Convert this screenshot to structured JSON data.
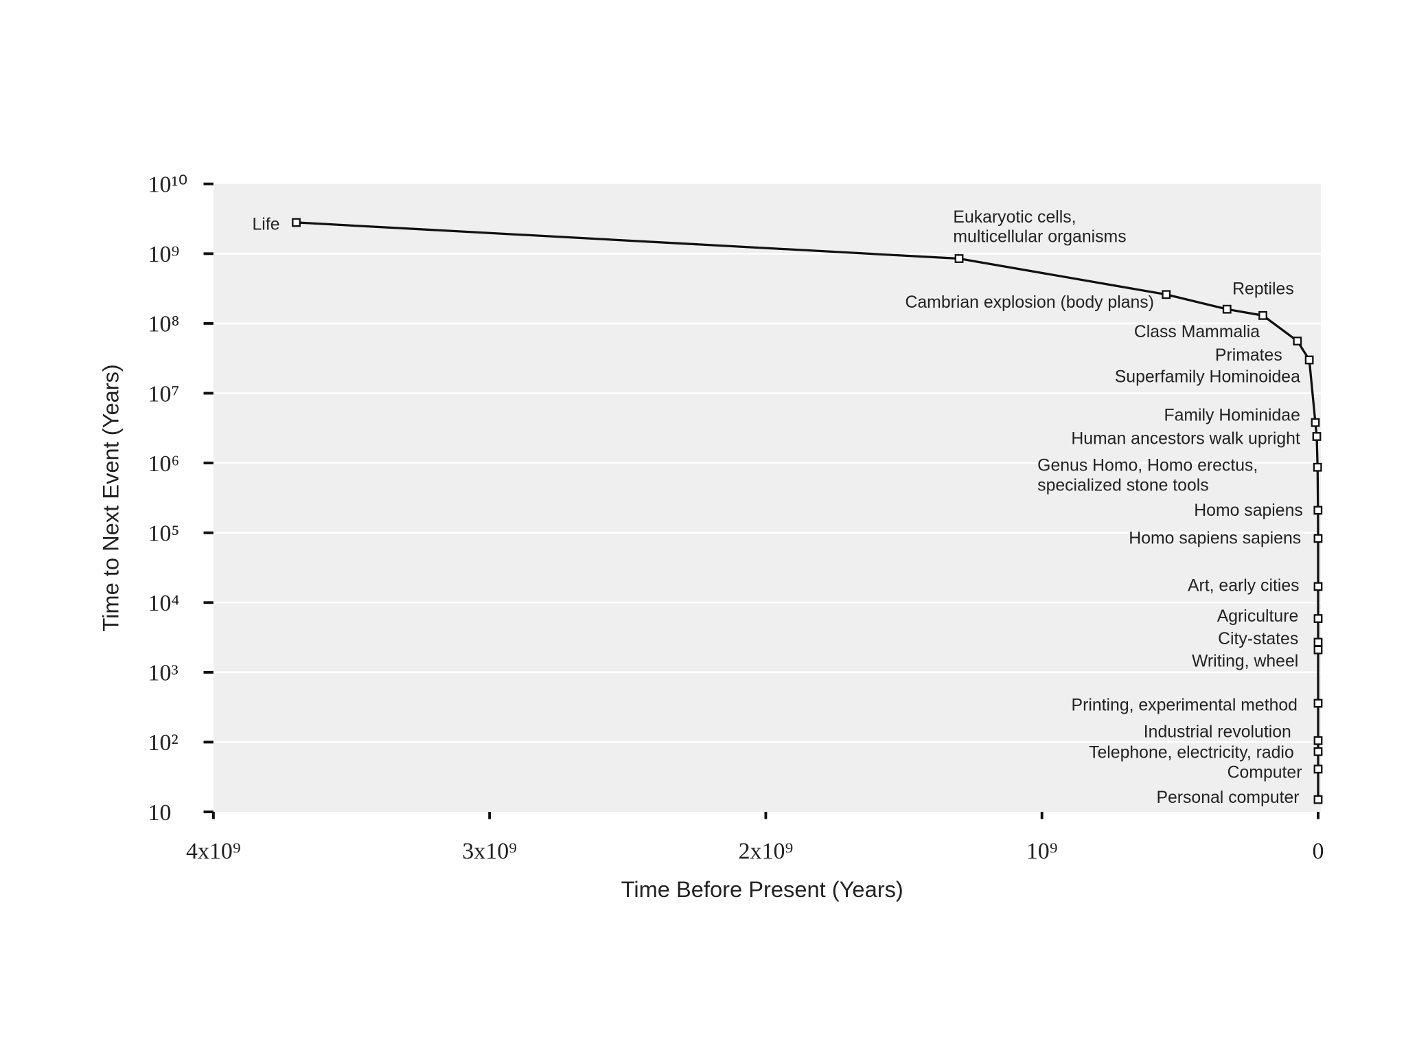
{
  "chart_data": {
    "type": "line",
    "xlabel": "Time Before Present (Years)",
    "ylabel": "Time to Next Event (Years)",
    "x": [
      3700000000,
      1300000000,
      550000000,
      330000000,
      200000000,
      75000000,
      32000000,
      10000000,
      5000000,
      2000000,
      500000,
      100000,
      20000,
      10000,
      5000,
      3500,
      500,
      200,
      100,
      50,
      25
    ],
    "values": [
      2800000000,
      850000000,
      260000000,
      160000000,
      130000000,
      56000000,
      30000000,
      3800000,
      2400000,
      870000,
      210000,
      83000,
      17000,
      5900,
      2700,
      2100,
      360,
      105,
      73,
      41,
      15
    ],
    "labels": [
      [
        "Life"
      ],
      [
        "Eukaryotic cells,",
        "multicellular organisms"
      ],
      [
        "Cambrian explosion (body plans)"
      ],
      [
        "Reptiles"
      ],
      [
        "Class Mammalia"
      ],
      [
        "Primates"
      ],
      [
        "Superfamily Hominoidea"
      ],
      [
        "Family Hominidae"
      ],
      [
        "Human ancestors walk upright"
      ],
      [
        "Genus Homo, Homo erectus,",
        "specialized stone tools"
      ],
      [
        "Homo sapiens"
      ],
      [
        "Homo sapiens sapiens"
      ],
      [
        "Art, early cities"
      ],
      [
        "Agriculture"
      ],
      [
        "City-states"
      ],
      [
        "Writing, wheel"
      ],
      [
        "Printing, experimental method"
      ],
      [
        "Industrial revolution"
      ],
      [
        "Telephone, electricity, radio"
      ],
      [
        "Computer"
      ],
      [
        "Personal computer"
      ]
    ],
    "color": "#111111",
    "background": "#efefef",
    "grid": true,
    "log_y": true,
    "xlim": [
      4000000000,
      0
    ],
    "ylim": [
      10,
      10000000000
    ],
    "xticks": [
      {
        "value": 4000000000,
        "label": "4x10⁹"
      },
      {
        "value": 3000000000,
        "label": "3x10⁹"
      },
      {
        "value": 2000000000,
        "label": "2x10⁹"
      },
      {
        "value": 1000000000,
        "label": "10⁹"
      },
      0
    ],
    "yticks": [
      10,
      {
        "value": 100,
        "label": "10²"
      },
      {
        "value": 1000,
        "label": "10³"
      },
      {
        "value": 10000,
        "label": "10⁴"
      },
      {
        "value": 100000,
        "label": "10⁵"
      },
      {
        "value": 1000000,
        "label": "10⁶"
      },
      {
        "value": 10000000,
        "label": "10⁷"
      },
      {
        "value": 100000000,
        "label": "10⁸"
      },
      {
        "value": 1000000000,
        "label": "10⁹"
      },
      {
        "value": 10000000000,
        "label": "10¹⁰"
      }
    ]
  }
}
